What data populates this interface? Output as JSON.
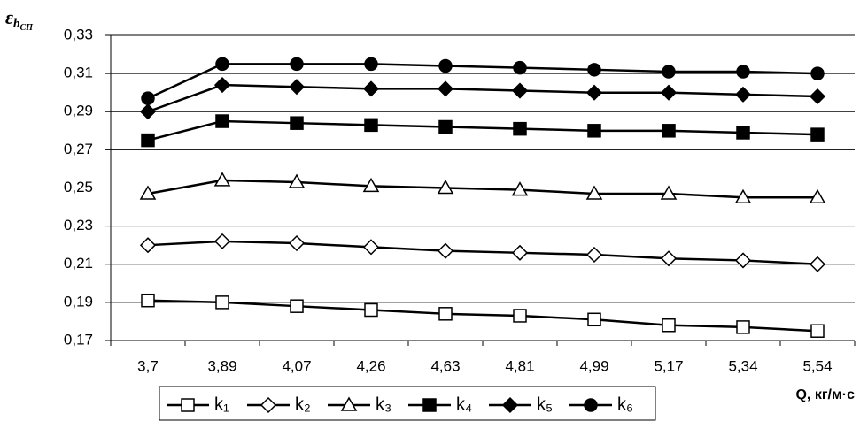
{
  "chart_data": {
    "type": "line",
    "y_label": {
      "symbol": "ε",
      "sub": "b",
      "subsub": "СП"
    },
    "x_label": "Q, кг/м·с",
    "categories": [
      "3,7",
      "3,89",
      "4,07",
      "4,26",
      "4,63",
      "4,81",
      "4,99",
      "5,17",
      "5,34",
      "5,54"
    ],
    "ylim": [
      0.17,
      0.33
    ],
    "yticks": [
      {
        "value": 0.17,
        "label": "0,17"
      },
      {
        "value": 0.19,
        "label": "0,19"
      },
      {
        "value": 0.21,
        "label": "0,21"
      },
      {
        "value": 0.23,
        "label": "0,23"
      },
      {
        "value": 0.25,
        "label": "0,25"
      },
      {
        "value": 0.27,
        "label": "0,27"
      },
      {
        "value": 0.29,
        "label": "0,29"
      },
      {
        "value": 0.31,
        "label": "0,31"
      },
      {
        "value": 0.33,
        "label": "0,33"
      }
    ],
    "grid": true,
    "legend": "bottom",
    "series": [
      {
        "name": "k₁",
        "color": "#000000",
        "marker": "square",
        "marker_fill": "#ffffff",
        "values": [
          0.191,
          0.19,
          0.188,
          0.186,
          0.184,
          0.183,
          0.181,
          0.178,
          0.177,
          0.175
        ]
      },
      {
        "name": "k₂",
        "color": "#000000",
        "marker": "diamond",
        "marker_fill": "#ffffff",
        "values": [
          0.22,
          0.222,
          0.221,
          0.219,
          0.217,
          0.216,
          0.215,
          0.213,
          0.212,
          0.21
        ]
      },
      {
        "name": "k₃",
        "color": "#000000",
        "marker": "triangle",
        "marker_fill": "#ffffff",
        "values": [
          0.247,
          0.254,
          0.253,
          0.251,
          0.25,
          0.249,
          0.247,
          0.247,
          0.245,
          0.245
        ]
      },
      {
        "name": "k₄",
        "color": "#000000",
        "marker": "square",
        "marker_fill": "#000000",
        "values": [
          0.275,
          0.285,
          0.284,
          0.283,
          0.282,
          0.281,
          0.28,
          0.28,
          0.279,
          0.278
        ]
      },
      {
        "name": "k₅",
        "color": "#000000",
        "marker": "diamond",
        "marker_fill": "#000000",
        "values": [
          0.29,
          0.304,
          0.303,
          0.302,
          0.302,
          0.301,
          0.3,
          0.3,
          0.299,
          0.298
        ]
      },
      {
        "name": "k₆",
        "color": "#000000",
        "marker": "circle",
        "marker_fill": "#000000",
        "values": [
          0.297,
          0.315,
          0.315,
          0.315,
          0.314,
          0.313,
          0.312,
          0.311,
          0.311,
          0.31
        ]
      }
    ]
  }
}
